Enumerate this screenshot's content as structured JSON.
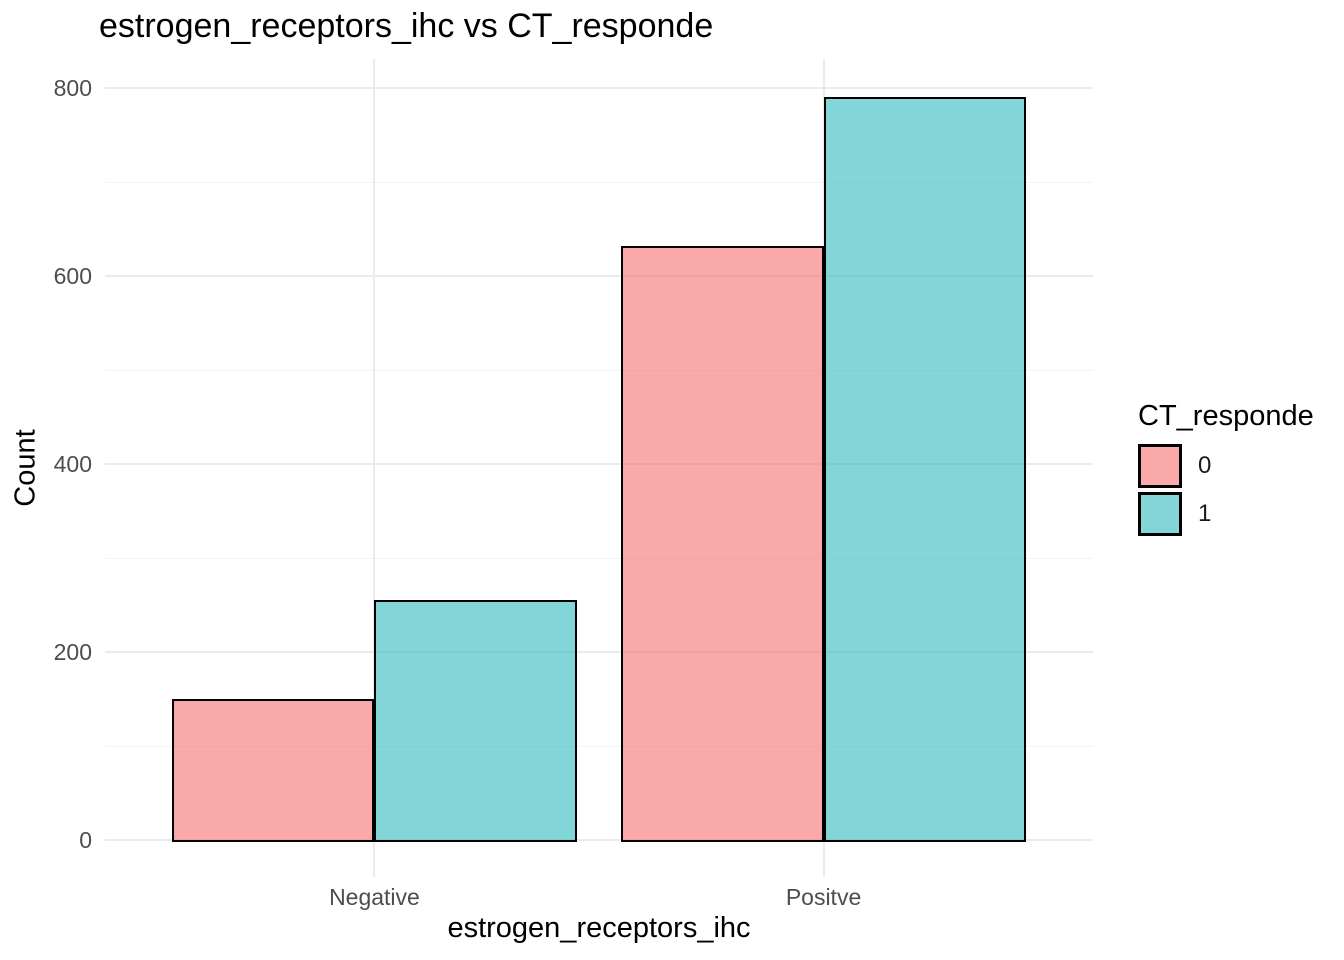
{
  "chart_data": {
    "type": "bar",
    "title": "estrogen_receptors_ihc vs CT_responde",
    "xlabel": "estrogen_receptors_ihc",
    "ylabel": "Count",
    "categories": [
      "Negative",
      "Positve"
    ],
    "series": [
      {
        "name": "0",
        "values": [
          150,
          632
        ],
        "fill": "rgba(246,112,112,0.6)",
        "fill_hex": "#F9A9A9",
        "border": "#000000"
      },
      {
        "name": "1",
        "values": [
          255,
          790
        ],
        "fill": "rgba(30,180,184,0.55)",
        "fill_hex": "#87D8DA",
        "border": "#000000"
      }
    ],
    "ylim": [
      0,
      830
    ],
    "ytick_labels": [
      "0",
      "200",
      "400",
      "600",
      "800"
    ],
    "ytick_values": [
      0,
      200,
      400,
      600,
      800
    ],
    "yminor_values": [
      100,
      300,
      500,
      700
    ],
    "legend": {
      "title": "CT_responde",
      "position": "right"
    },
    "grid": {
      "show": true,
      "major_color": "#EBEBEB",
      "minor_color": "#F3F3F3"
    },
    "layout_hints": {
      "bar_mode": "dodge",
      "panel_background": "#FFFFFF",
      "tick_text_color": "#4D4D4D",
      "title_text_color": "#000000"
    }
  }
}
